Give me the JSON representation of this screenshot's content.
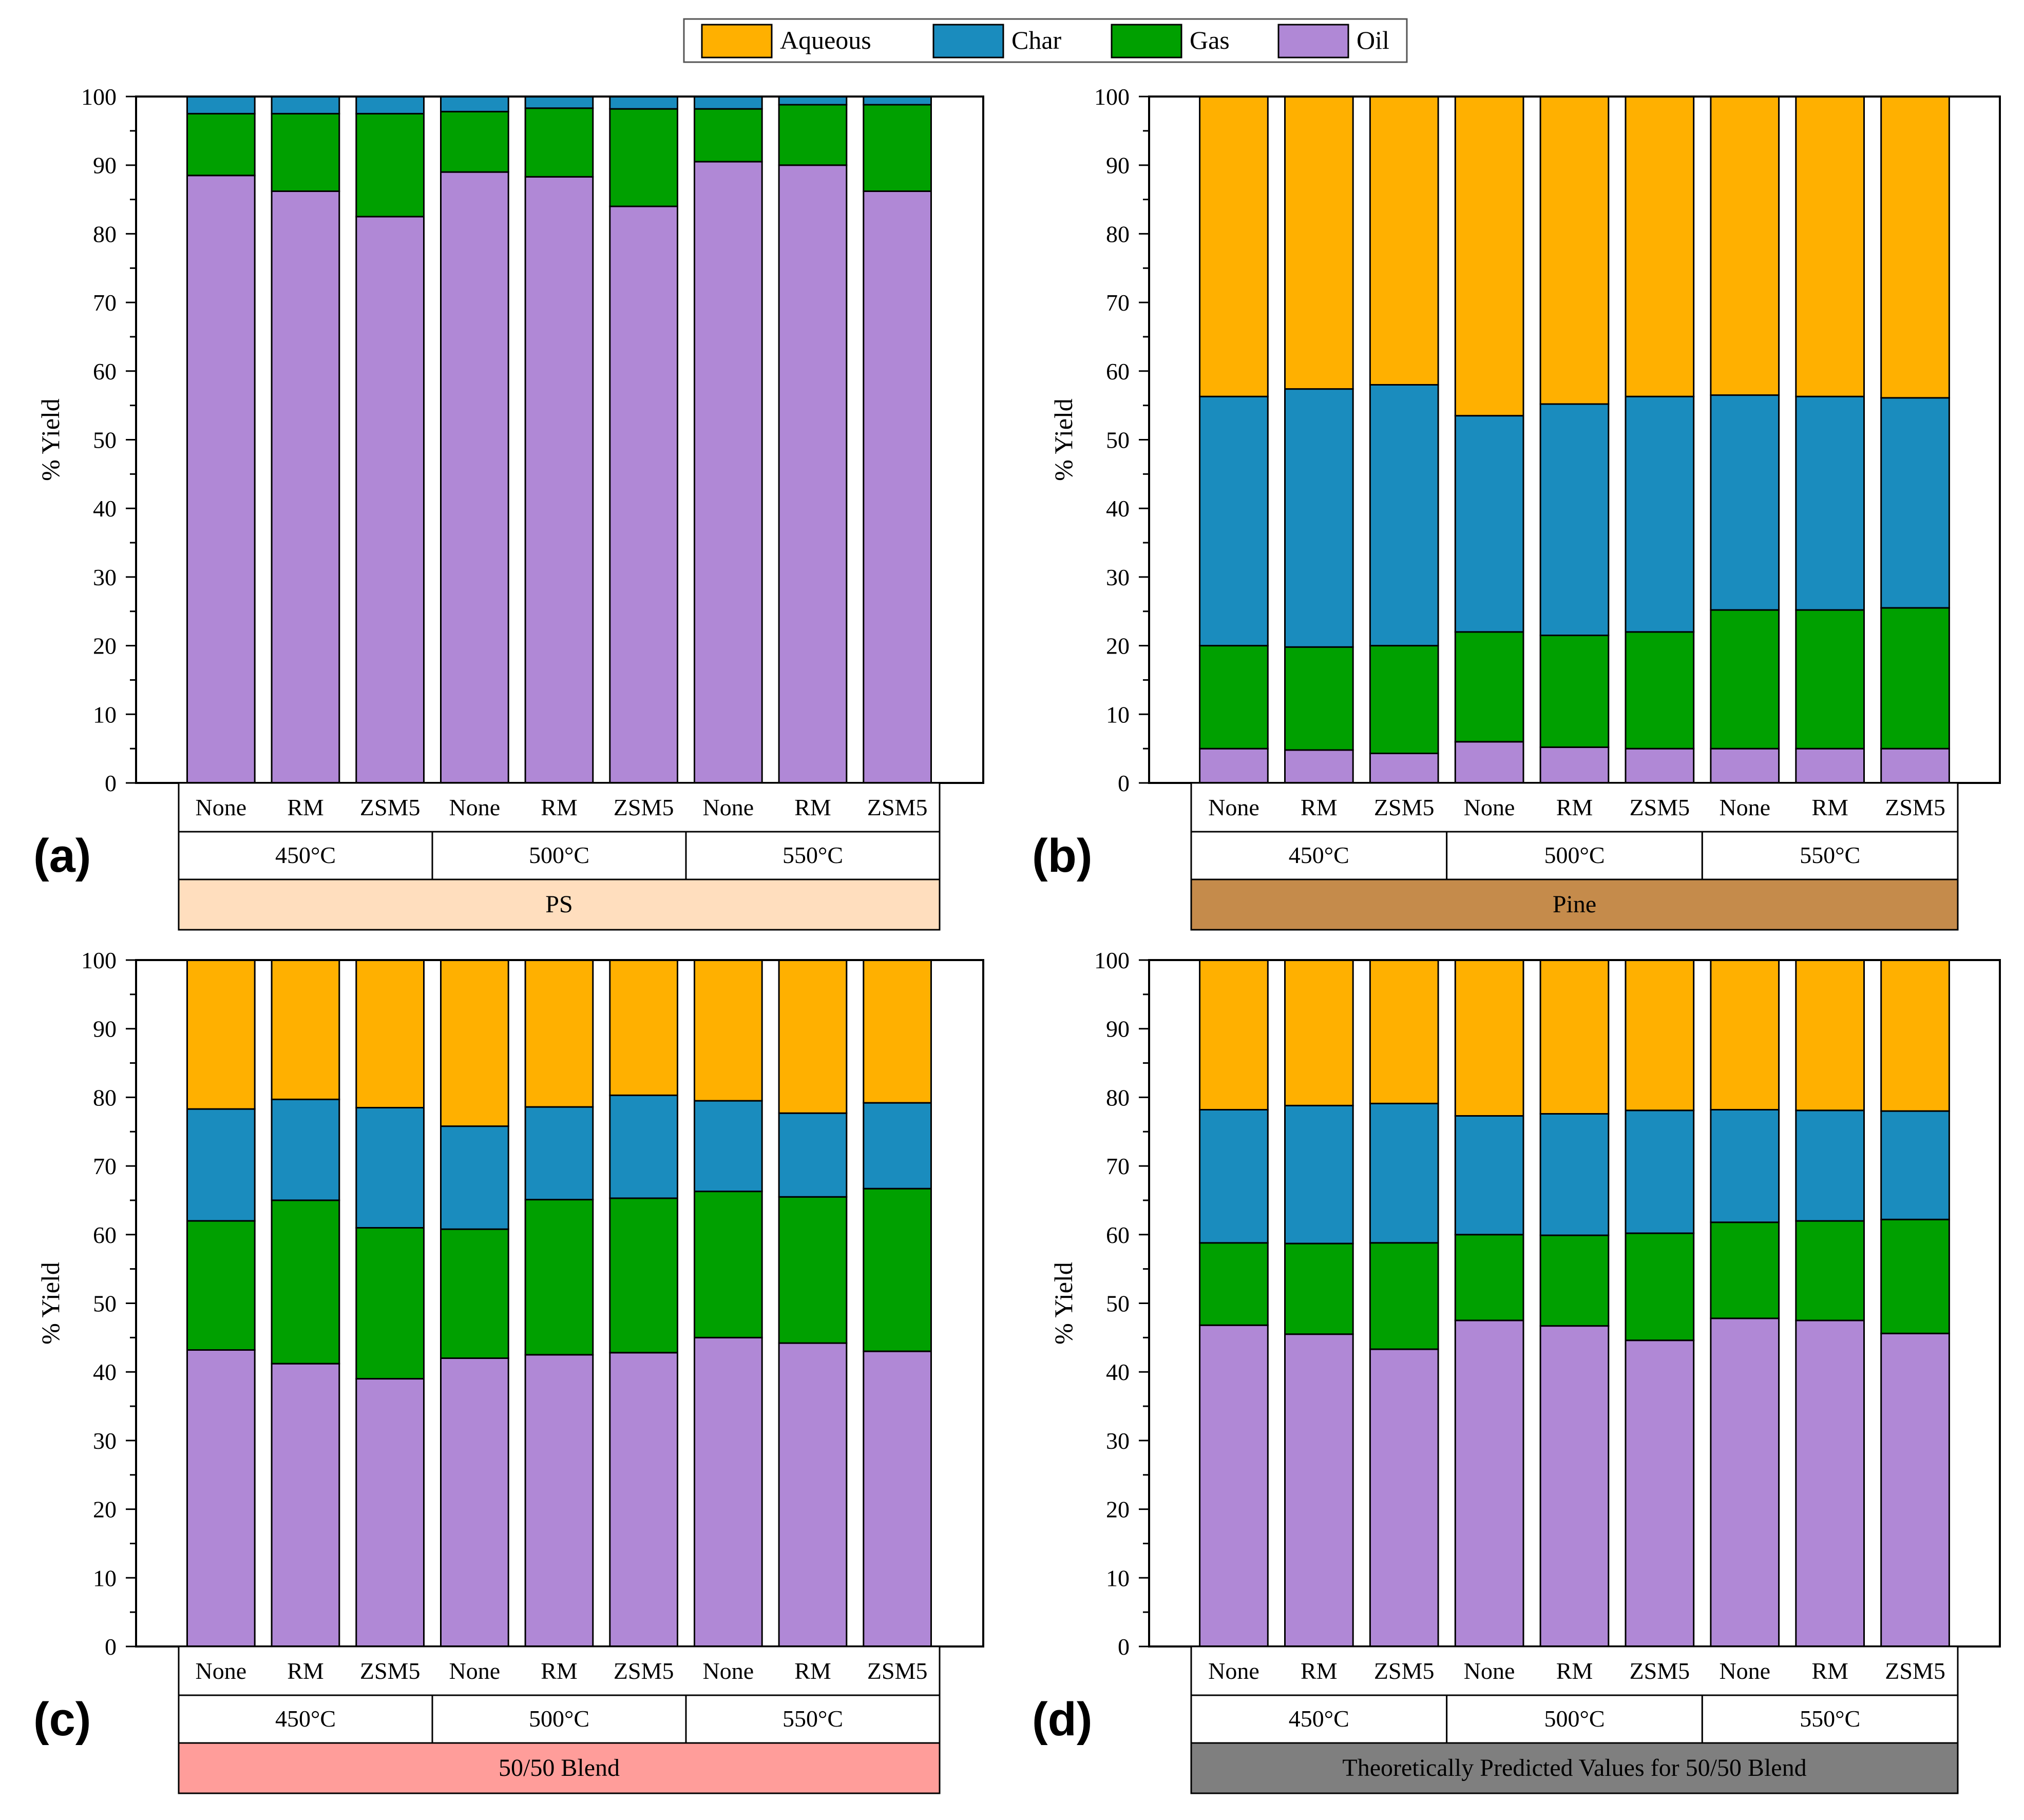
{
  "legend": {
    "position": "top-center",
    "items": [
      {
        "name": "Aqueous",
        "color": "#FFB000"
      },
      {
        "name": "Char",
        "color": "#1A8CBE"
      },
      {
        "name": "Gas",
        "color": "#00A000"
      },
      {
        "name": "Oil",
        "color": "#B088D6"
      }
    ]
  },
  "chart_data": [
    {
      "type": "bar",
      "stacked": true,
      "panel_label": "(a)",
      "feedstock": "PS",
      "feedstock_color": "#FFDEBE",
      "catalysts": [
        "None",
        "RM",
        "ZSM5",
        "None",
        "RM",
        "ZSM5",
        "None",
        "RM",
        "ZSM5"
      ],
      "temperatures": [
        "450°C",
        "500°C",
        "550°C"
      ],
      "ylabel": "% Yield",
      "ylim": [
        0,
        100
      ],
      "yticks": [
        "0",
        "10",
        "20",
        "30",
        "40",
        "50",
        "60",
        "70",
        "80",
        "90",
        "100"
      ],
      "series": [
        {
          "name": "Oil",
          "values": [
            88.5,
            86.2,
            82.5,
            89.0,
            88.3,
            84.0,
            90.5,
            90.0,
            86.2
          ]
        },
        {
          "name": "Gas",
          "values": [
            9.0,
            11.3,
            15.0,
            8.8,
            10.0,
            14.2,
            7.7,
            8.8,
            12.6
          ]
        },
        {
          "name": "Char",
          "values": [
            2.5,
            2.5,
            2.5,
            2.2,
            1.7,
            1.8,
            1.8,
            1.2,
            1.2
          ]
        },
        {
          "name": "Aqueous",
          "values": [
            0,
            0,
            0,
            0,
            0,
            0,
            0,
            0,
            0
          ]
        }
      ]
    },
    {
      "type": "bar",
      "stacked": true,
      "panel_label": "(b)",
      "feedstock": "Pine",
      "feedstock_color": "#C58B4B",
      "catalysts": [
        "None",
        "RM",
        "ZSM5",
        "None",
        "RM",
        "ZSM5",
        "None",
        "RM",
        "ZSM5"
      ],
      "temperatures": [
        "450°C",
        "500°C",
        "550°C"
      ],
      "ylabel": "% Yield",
      "ylim": [
        0,
        100
      ],
      "yticks": [
        "0",
        "10",
        "20",
        "30",
        "40",
        "50",
        "60",
        "70",
        "80",
        "90",
        "100"
      ],
      "series": [
        {
          "name": "Oil",
          "values": [
            5.0,
            4.8,
            4.3,
            6.0,
            5.2,
            5.0,
            5.0,
            5.0,
            5.0
          ]
        },
        {
          "name": "Gas",
          "values": [
            15.0,
            15.0,
            15.7,
            16.0,
            16.3,
            17.0,
            20.2,
            20.2,
            20.5
          ]
        },
        {
          "name": "Char",
          "values": [
            36.3,
            37.6,
            38.0,
            31.5,
            33.7,
            34.3,
            31.3,
            31.1,
            30.6
          ]
        },
        {
          "name": "Aqueous",
          "values": [
            43.7,
            42.6,
            42.0,
            46.5,
            44.8,
            43.7,
            43.5,
            43.7,
            43.9
          ]
        }
      ]
    },
    {
      "type": "bar",
      "stacked": true,
      "panel_label": "(c)",
      "feedstock": "50/50 Blend",
      "feedstock_color": "#FF9D9A",
      "catalysts": [
        "None",
        "RM",
        "ZSM5",
        "None",
        "RM",
        "ZSM5",
        "None",
        "RM",
        "ZSM5"
      ],
      "temperatures": [
        "450°C",
        "500°C",
        "550°C"
      ],
      "ylabel": "% Yield",
      "ylim": [
        0,
        100
      ],
      "yticks": [
        "0",
        "10",
        "20",
        "30",
        "40",
        "50",
        "60",
        "70",
        "80",
        "90",
        "100"
      ],
      "series": [
        {
          "name": "Oil",
          "values": [
            43.2,
            41.2,
            39.0,
            42.0,
            42.5,
            42.8,
            45.0,
            44.2,
            43.0
          ]
        },
        {
          "name": "Gas",
          "values": [
            18.8,
            23.8,
            22.0,
            18.8,
            22.6,
            22.5,
            21.3,
            21.3,
            23.7
          ]
        },
        {
          "name": "Char",
          "values": [
            16.3,
            14.7,
            17.5,
            15.0,
            13.5,
            15.0,
            13.2,
            12.2,
            12.5
          ]
        },
        {
          "name": "Aqueous",
          "values": [
            21.7,
            20.3,
            21.5,
            24.2,
            21.4,
            19.7,
            20.5,
            22.3,
            20.8
          ]
        }
      ]
    },
    {
      "type": "bar",
      "stacked": true,
      "panel_label": "(d)",
      "feedstock": "Theoretically Predicted Values for 50/50 Blend",
      "feedstock_color": "#7F7F7F",
      "catalysts": [
        "None",
        "RM",
        "ZSM5",
        "None",
        "RM",
        "ZSM5",
        "None",
        "RM",
        "ZSM5"
      ],
      "temperatures": [
        "450°C",
        "500°C",
        "550°C"
      ],
      "ylabel": "% Yield",
      "ylim": [
        0,
        100
      ],
      "yticks": [
        "0",
        "10",
        "20",
        "30",
        "40",
        "50",
        "60",
        "70",
        "80",
        "90",
        "100"
      ],
      "series": [
        {
          "name": "Oil",
          "values": [
            46.8,
            45.5,
            43.3,
            47.5,
            46.7,
            44.6,
            47.8,
            47.5,
            45.6
          ]
        },
        {
          "name": "Gas",
          "values": [
            12.0,
            13.2,
            15.5,
            12.5,
            13.2,
            15.6,
            14.0,
            14.5,
            16.6
          ]
        },
        {
          "name": "Char",
          "values": [
            19.4,
            20.1,
            20.3,
            17.3,
            17.7,
            17.9,
            16.4,
            16.1,
            15.8
          ]
        },
        {
          "name": "Aqueous",
          "values": [
            21.8,
            21.2,
            20.9,
            22.7,
            22.4,
            21.9,
            21.8,
            21.9,
            22.0
          ]
        }
      ]
    }
  ]
}
